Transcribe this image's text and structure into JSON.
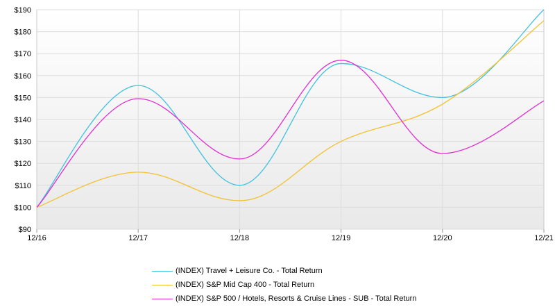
{
  "chart_data": {
    "type": "line",
    "categories": [
      "12/16",
      "12/17",
      "12/18",
      "12/19",
      "12/20",
      "12/21"
    ],
    "ylim": [
      90,
      190
    ],
    "yticks": [
      "$90",
      "$100",
      "$110",
      "$120",
      "$130",
      "$140",
      "$150",
      "$160",
      "$170",
      "$180",
      "$190"
    ],
    "grid": true,
    "legend_position": "bottom",
    "series": [
      {
        "name": "(INDEX) Travel + Leisure Co. - Total Return",
        "color": "#3fc1e0",
        "values": [
          100,
          155.5,
          110,
          165.5,
          150,
          190
        ]
      },
      {
        "name": "(INDEX) S&P Mid Cap 400 - Total Return",
        "color": "#f2c12e",
        "values": [
          100,
          116,
          103,
          130,
          147,
          185
        ]
      },
      {
        "name": "(INDEX) S&P 500 / Hotels, Resorts & Cruise Lines - SUB - Total Return",
        "color": "#e02fd0",
        "values": [
          100,
          149.5,
          122,
          167,
          124.5,
          148.5
        ]
      }
    ]
  }
}
